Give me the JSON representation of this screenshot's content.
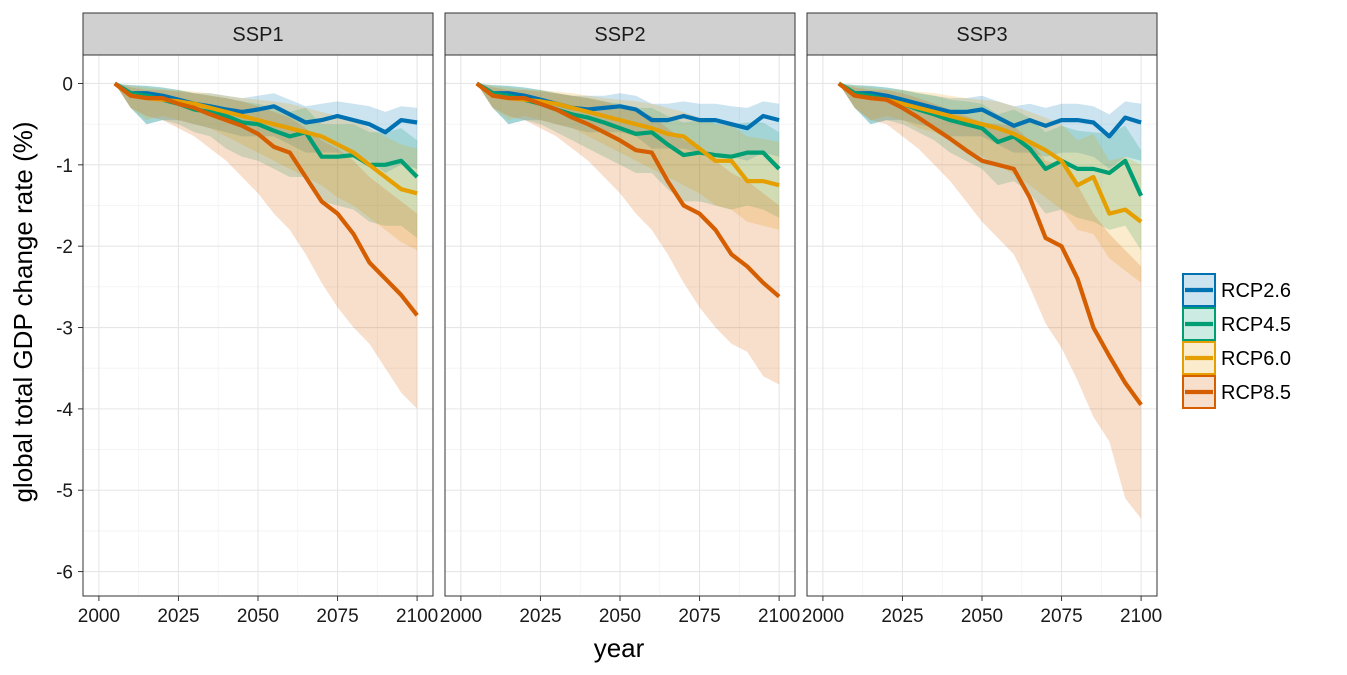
{
  "chart_data": {
    "type": "line",
    "xlabel": "year",
    "ylabel": "global total GDP change rate (%)",
    "xlim": [
      1995,
      2105
    ],
    "ylim": [
      -6.3,
      0.35
    ],
    "x_ticks": [
      2000,
      2025,
      2050,
      2075,
      2100
    ],
    "x_tick_labels": [
      "2000",
      "2025",
      "2050",
      "2075",
      "2100"
    ],
    "y_ticks": [
      0,
      -1,
      -2,
      -3,
      -4,
      -5,
      -6
    ],
    "y_tick_labels": [
      "0",
      "-1",
      "-2",
      "-3",
      "-4",
      "-5",
      "-6"
    ],
    "grid": true,
    "legend_position": "right",
    "series_styles": [
      {
        "name": "RCP2.6",
        "color": "#0072B2"
      },
      {
        "name": "RCP4.5",
        "color": "#009E73"
      },
      {
        "name": "RCP6.0",
        "color": "#E69F00"
      },
      {
        "name": "RCP8.5",
        "color": "#D55E00"
      }
    ],
    "x": [
      2005,
      2010,
      2015,
      2020,
      2025,
      2030,
      2035,
      2040,
      2045,
      2050,
      2055,
      2060,
      2065,
      2070,
      2075,
      2080,
      2085,
      2090,
      2095,
      2100
    ],
    "panels": [
      {
        "title": "SSP1",
        "series": [
          {
            "name": "RCP2.6",
            "values": [
              0,
              -0.12,
              -0.12,
              -0.15,
              -0.2,
              -0.25,
              -0.28,
              -0.32,
              -0.35,
              -0.32,
              -0.28,
              -0.38,
              -0.48,
              -0.45,
              -0.4,
              -0.45,
              -0.5,
              -0.6,
              -0.45,
              -0.48
            ],
            "lower": [
              0,
              -0.3,
              -0.5,
              -0.45,
              -0.45,
              -0.5,
              -0.55,
              -0.6,
              -0.65,
              -0.65,
              -0.65,
              -0.75,
              -0.85,
              -0.85,
              -0.85,
              -0.9,
              -0.95,
              -1.1,
              -1.0,
              -1.05
            ],
            "upper": [
              0,
              -0.02,
              -0.03,
              -0.05,
              -0.08,
              -0.12,
              -0.12,
              -0.15,
              -0.18,
              -0.15,
              -0.12,
              -0.2,
              -0.28,
              -0.25,
              -0.22,
              -0.25,
              -0.28,
              -0.35,
              -0.28,
              -0.3
            ]
          },
          {
            "name": "RCP4.5",
            "values": [
              0,
              -0.12,
              -0.15,
              -0.2,
              -0.25,
              -0.32,
              -0.35,
              -0.4,
              -0.48,
              -0.5,
              -0.58,
              -0.65,
              -0.6,
              -0.9,
              -0.9,
              -0.88,
              -1.0,
              -1.0,
              -0.95,
              -1.15
            ],
            "lower": [
              0,
              -0.3,
              -0.5,
              -0.45,
              -0.5,
              -0.6,
              -0.65,
              -0.8,
              -0.9,
              -0.95,
              -1.05,
              -1.15,
              -1.15,
              -1.45,
              -1.5,
              -1.55,
              -1.7,
              -1.75,
              -1.75,
              -1.9
            ],
            "upper": [
              0,
              -0.02,
              -0.03,
              -0.05,
              -0.08,
              -0.12,
              -0.15,
              -0.18,
              -0.22,
              -0.25,
              -0.3,
              -0.35,
              -0.3,
              -0.5,
              -0.5,
              -0.5,
              -0.6,
              -0.6,
              -0.55,
              -0.7
            ]
          },
          {
            "name": "RCP6.0",
            "values": [
              0,
              -0.15,
              -0.18,
              -0.2,
              -0.22,
              -0.25,
              -0.3,
              -0.35,
              -0.4,
              -0.45,
              -0.5,
              -0.55,
              -0.6,
              -0.65,
              -0.75,
              -0.85,
              -1.0,
              -1.15,
              -1.3,
              -1.35
            ],
            "lower": [
              0,
              -0.3,
              -0.45,
              -0.4,
              -0.45,
              -0.5,
              -0.55,
              -0.65,
              -0.75,
              -0.85,
              -0.95,
              -1.05,
              -1.15,
              -1.25,
              -1.4,
              -1.5,
              -1.65,
              -1.8,
              -1.95,
              -2.05
            ],
            "upper": [
              0,
              -0.03,
              -0.05,
              -0.07,
              -0.08,
              -0.1,
              -0.12,
              -0.15,
              -0.18,
              -0.2,
              -0.22,
              -0.25,
              -0.3,
              -0.35,
              -0.4,
              -0.45,
              -0.55,
              -0.65,
              -0.75,
              -0.8
            ]
          },
          {
            "name": "RCP8.5",
            "values": [
              0,
              -0.15,
              -0.18,
              -0.18,
              -0.25,
              -0.3,
              -0.38,
              -0.45,
              -0.52,
              -0.62,
              -0.78,
              -0.85,
              -1.15,
              -1.45,
              -1.6,
              -1.85,
              -2.2,
              -2.4,
              -2.6,
              -2.85
            ],
            "lower": [
              0,
              -0.3,
              -0.4,
              -0.45,
              -0.55,
              -0.65,
              -0.8,
              -0.95,
              -1.15,
              -1.35,
              -1.6,
              -1.8,
              -2.1,
              -2.45,
              -2.75,
              -3.0,
              -3.2,
              -3.5,
              -3.8,
              -4.0
            ],
            "upper": [
              0,
              -0.05,
              -0.08,
              -0.08,
              -0.1,
              -0.12,
              -0.15,
              -0.18,
              -0.22,
              -0.28,
              -0.35,
              -0.42,
              -0.55,
              -0.7,
              -0.8,
              -0.95,
              -1.15,
              -1.3,
              -1.45,
              -1.6
            ]
          }
        ]
      },
      {
        "title": "SSP2",
        "series": [
          {
            "name": "RCP2.6",
            "values": [
              0,
              -0.12,
              -0.12,
              -0.15,
              -0.2,
              -0.25,
              -0.3,
              -0.32,
              -0.3,
              -0.28,
              -0.32,
              -0.45,
              -0.45,
              -0.4,
              -0.45,
              -0.45,
              -0.5,
              -0.55,
              -0.4,
              -0.45
            ],
            "lower": [
              0,
              -0.3,
              -0.5,
              -0.45,
              -0.45,
              -0.5,
              -0.55,
              -0.6,
              -0.6,
              -0.6,
              -0.65,
              -0.8,
              -0.8,
              -0.8,
              -0.85,
              -0.85,
              -0.9,
              -0.95,
              -0.85,
              -0.9
            ],
            "upper": [
              0,
              -0.02,
              -0.03,
              -0.05,
              -0.08,
              -0.12,
              -0.15,
              -0.15,
              -0.15,
              -0.12,
              -0.15,
              -0.25,
              -0.25,
              -0.22,
              -0.25,
              -0.25,
              -0.28,
              -0.3,
              -0.22,
              -0.25
            ]
          },
          {
            "name": "RCP4.5",
            "values": [
              0,
              -0.12,
              -0.15,
              -0.2,
              -0.25,
              -0.32,
              -0.38,
              -0.42,
              -0.48,
              -0.55,
              -0.62,
              -0.6,
              -0.75,
              -0.88,
              -0.85,
              -0.88,
              -0.9,
              -0.85,
              -0.85,
              -1.05
            ],
            "lower": [
              0,
              -0.3,
              -0.5,
              -0.45,
              -0.5,
              -0.6,
              -0.7,
              -0.8,
              -0.9,
              -1.0,
              -1.1,
              -1.1,
              -1.3,
              -1.45,
              -1.45,
              -1.5,
              -1.55,
              -1.5,
              -1.55,
              -1.65
            ],
            "upper": [
              0,
              -0.02,
              -0.03,
              -0.05,
              -0.08,
              -0.12,
              -0.15,
              -0.18,
              -0.22,
              -0.25,
              -0.3,
              -0.3,
              -0.4,
              -0.48,
              -0.45,
              -0.48,
              -0.5,
              -0.48,
              -0.48,
              -0.6
            ]
          },
          {
            "name": "RCP6.0",
            "values": [
              0,
              -0.15,
              -0.18,
              -0.2,
              -0.22,
              -0.25,
              -0.3,
              -0.35,
              -0.4,
              -0.45,
              -0.5,
              -0.55,
              -0.62,
              -0.65,
              -0.8,
              -0.95,
              -0.95,
              -1.2,
              -1.2,
              -1.25
            ],
            "lower": [
              0,
              -0.3,
              -0.45,
              -0.4,
              -0.45,
              -0.5,
              -0.55,
              -0.65,
              -0.75,
              -0.85,
              -0.95,
              -1.05,
              -1.15,
              -1.25,
              -1.35,
              -1.5,
              -1.55,
              -1.7,
              -1.75,
              -1.8
            ],
            "upper": [
              0,
              -0.03,
              -0.05,
              -0.07,
              -0.08,
              -0.1,
              -0.12,
              -0.15,
              -0.18,
              -0.2,
              -0.22,
              -0.25,
              -0.3,
              -0.35,
              -0.42,
              -0.5,
              -0.52,
              -0.65,
              -0.68,
              -0.72
            ]
          },
          {
            "name": "RCP8.5",
            "values": [
              0,
              -0.15,
              -0.18,
              -0.18,
              -0.25,
              -0.32,
              -0.42,
              -0.5,
              -0.6,
              -0.7,
              -0.82,
              -0.85,
              -1.2,
              -1.5,
              -1.6,
              -1.8,
              -2.1,
              -2.25,
              -2.45,
              -2.62
            ],
            "lower": [
              0,
              -0.3,
              -0.4,
              -0.45,
              -0.55,
              -0.65,
              -0.8,
              -0.95,
              -1.15,
              -1.35,
              -1.6,
              -1.8,
              -2.1,
              -2.45,
              -2.75,
              -3.0,
              -3.2,
              -3.3,
              -3.6,
              -3.7
            ],
            "upper": [
              0,
              -0.05,
              -0.08,
              -0.08,
              -0.1,
              -0.12,
              -0.15,
              -0.18,
              -0.22,
              -0.28,
              -0.35,
              -0.4,
              -0.55,
              -0.7,
              -0.8,
              -0.95,
              -1.1,
              -1.2,
              -1.35,
              -1.5
            ]
          }
        ]
      },
      {
        "title": "SSP3",
        "series": [
          {
            "name": "RCP2.6",
            "values": [
              0,
              -0.12,
              -0.12,
              -0.15,
              -0.2,
              -0.25,
              -0.3,
              -0.35,
              -0.35,
              -0.32,
              -0.42,
              -0.52,
              -0.45,
              -0.52,
              -0.45,
              -0.45,
              -0.48,
              -0.65,
              -0.42,
              -0.48
            ],
            "lower": [
              0,
              -0.3,
              -0.5,
              -0.45,
              -0.45,
              -0.5,
              -0.55,
              -0.65,
              -0.65,
              -0.65,
              -0.75,
              -0.85,
              -0.85,
              -0.9,
              -0.85,
              -0.85,
              -0.9,
              -1.05,
              -0.9,
              -0.95
            ],
            "upper": [
              0,
              -0.02,
              -0.03,
              -0.05,
              -0.08,
              -0.12,
              -0.15,
              -0.18,
              -0.18,
              -0.15,
              -0.22,
              -0.28,
              -0.25,
              -0.3,
              -0.25,
              -0.25,
              -0.28,
              -0.38,
              -0.22,
              -0.25
            ]
          },
          {
            "name": "RCP4.5",
            "values": [
              0,
              -0.12,
              -0.15,
              -0.2,
              -0.25,
              -0.32,
              -0.38,
              -0.45,
              -0.5,
              -0.55,
              -0.72,
              -0.65,
              -0.8,
              -1.05,
              -0.95,
              -1.05,
              -1.05,
              -1.1,
              -0.95,
              -1.38
            ],
            "lower": [
              0,
              -0.3,
              -0.5,
              -0.45,
              -0.5,
              -0.6,
              -0.7,
              -0.85,
              -0.95,
              -1.05,
              -1.25,
              -1.2,
              -1.35,
              -1.6,
              -1.55,
              -1.65,
              -1.7,
              -1.8,
              -1.75,
              -2.05
            ],
            "upper": [
              0,
              -0.02,
              -0.03,
              -0.05,
              -0.08,
              -0.12,
              -0.15,
              -0.2,
              -0.22,
              -0.25,
              -0.38,
              -0.32,
              -0.42,
              -0.6,
              -0.52,
              -0.58,
              -0.6,
              -0.62,
              -0.52,
              -0.82
            ]
          },
          {
            "name": "RCP6.0",
            "values": [
              0,
              -0.15,
              -0.18,
              -0.2,
              -0.25,
              -0.3,
              -0.35,
              -0.4,
              -0.45,
              -0.5,
              -0.55,
              -0.62,
              -0.72,
              -0.82,
              -0.95,
              -1.25,
              -1.15,
              -1.6,
              -1.55,
              -1.7
            ],
            "lower": [
              0,
              -0.3,
              -0.45,
              -0.4,
              -0.45,
              -0.55,
              -0.6,
              -0.7,
              -0.8,
              -0.9,
              -1.0,
              -1.12,
              -1.25,
              -1.4,
              -1.55,
              -1.8,
              -1.85,
              -2.15,
              -2.3,
              -2.45
            ],
            "upper": [
              0,
              -0.03,
              -0.05,
              -0.07,
              -0.08,
              -0.1,
              -0.12,
              -0.15,
              -0.18,
              -0.2,
              -0.22,
              -0.28,
              -0.35,
              -0.42,
              -0.5,
              -0.7,
              -0.62,
              -0.95,
              -0.9,
              -1.0
            ]
          },
          {
            "name": "RCP8.5",
            "values": [
              0,
              -0.15,
              -0.18,
              -0.2,
              -0.3,
              -0.42,
              -0.55,
              -0.68,
              -0.82,
              -0.95,
              -1.0,
              -1.05,
              -1.4,
              -1.9,
              -2.0,
              -2.4,
              -3.0,
              -3.35,
              -3.68,
              -3.95
            ],
            "lower": [
              0,
              -0.3,
              -0.45,
              -0.5,
              -0.65,
              -0.8,
              -1.0,
              -1.2,
              -1.45,
              -1.7,
              -1.9,
              -2.1,
              -2.5,
              -2.95,
              -3.25,
              -3.65,
              -4.1,
              -4.4,
              -5.1,
              -5.35
            ],
            "upper": [
              0,
              -0.05,
              -0.08,
              -0.08,
              -0.12,
              -0.18,
              -0.25,
              -0.32,
              -0.4,
              -0.48,
              -0.5,
              -0.52,
              -0.7,
              -0.95,
              -1.0,
              -1.25,
              -1.6,
              -1.85,
              -2.05,
              -2.25
            ]
          }
        ]
      }
    ]
  }
}
